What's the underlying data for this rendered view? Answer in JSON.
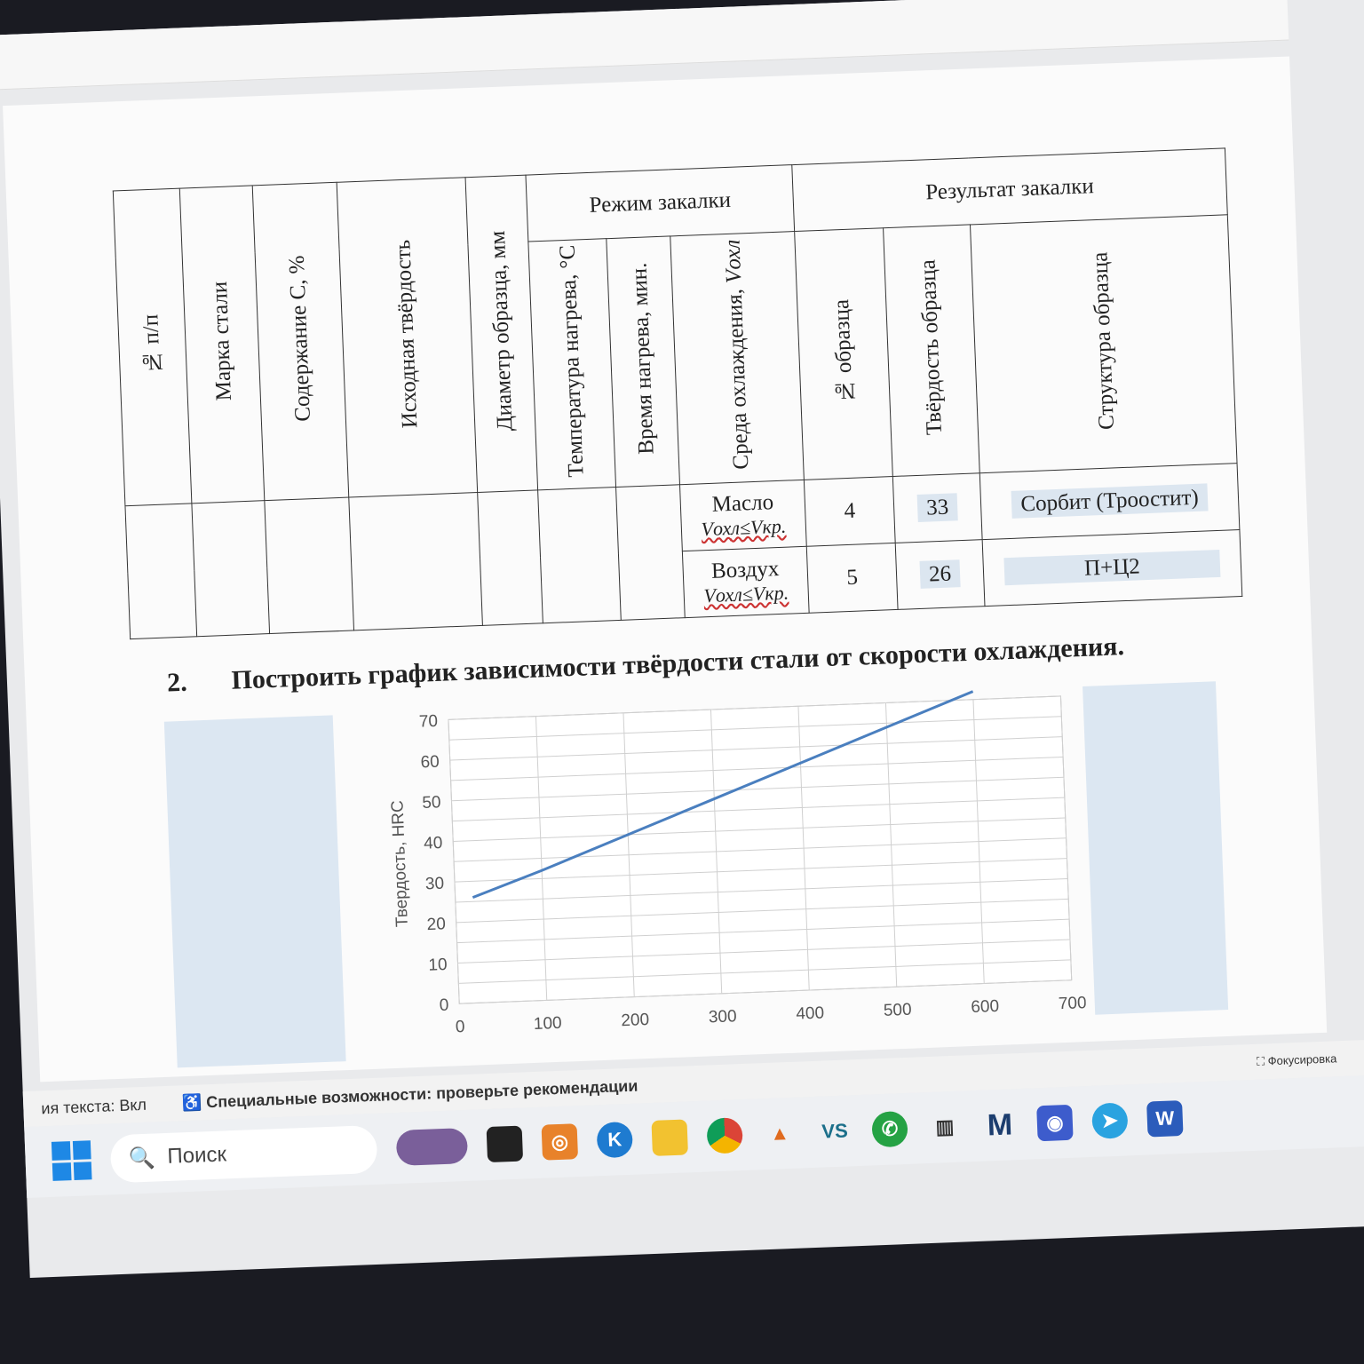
{
  "table": {
    "headers": {
      "num": "№ п/п",
      "steel": "Марка стали",
      "carbon": "Содержание С, %",
      "initial_hardness": "Исходная твёрдость",
      "diameter": "Диаметр образца, мм",
      "quench_mode": "Режим закалки",
      "temp": "Температура нагрева, °С",
      "time": "Время нагрева, мин.",
      "medium": "Среда охлаждения,",
      "medium_sym": "Vохл",
      "result": "Результат закалки",
      "sample_no": "№ образца",
      "sample_hardness": "Твёрдость образца",
      "structure": "Структура образца"
    },
    "rows": [
      {
        "medium": "Масло",
        "cond": "Vохл≤Vкр.",
        "sample_no": "4",
        "hardness": "33",
        "structure": "Сорбит (Троостит)"
      },
      {
        "medium": "Воздух",
        "cond": "Vохл≤Vкр.",
        "sample_no": "5",
        "hardness": "26",
        "structure": "П+Ц2"
      }
    ]
  },
  "task": {
    "number": "2.",
    "text": "Построить график зависимости твёрдости стали от скорости охлаждения."
  },
  "chart_data": {
    "type": "line",
    "title": "",
    "xlabel": "",
    "ylabel": "Твердость, HRC",
    "xlim": [
      0,
      700
    ],
    "ylim": [
      0,
      70
    ],
    "xticks": [
      0,
      100,
      200,
      300,
      400,
      500,
      600,
      700
    ],
    "yticks": [
      0,
      10,
      20,
      30,
      40,
      50,
      60,
      70
    ],
    "grid": true,
    "color": "#4a7fbf",
    "x": [
      20,
      100,
      200,
      300,
      400,
      500,
      600
    ],
    "y": [
      26,
      32,
      40,
      48,
      56,
      64,
      72
    ]
  },
  "statusbar": {
    "text_mode": "ия текста: Вкл",
    "accessibility": "Специальные возможности: проверьте рекомендации",
    "focus": "Фокусировка"
  },
  "taskbar": {
    "search_placeholder": "Поиск"
  }
}
